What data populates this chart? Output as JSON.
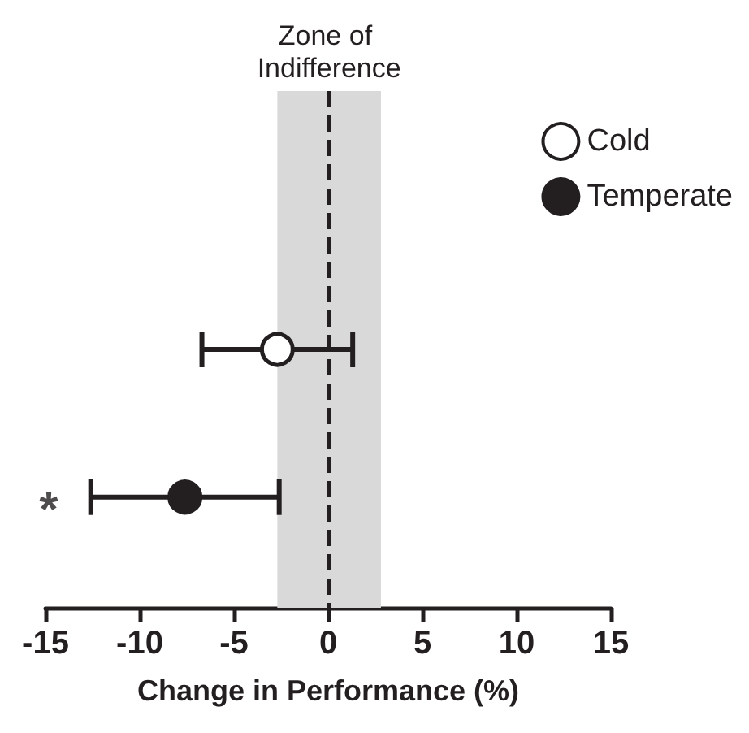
{
  "chart_data": {
    "type": "scatter",
    "orientation": "horizontal",
    "xlabel": "Change in Performance (%)",
    "categories": [
      null,
      null,
      null,
      null,
      null,
      null,
      null
    ],
    "series": [
      {
        "name": "Cold",
        "color": "#ffffff",
        "values": [
          null,
          null,
          null,
          -2.7,
          null,
          null,
          null
        ],
        "errors": [
          null,
          null,
          null,
          [
            -6.7,
            1.3
          ],
          null,
          null,
          null
        ]
      },
      {
        "name": "Temperate",
        "color": "#231f20",
        "values": [
          null,
          null,
          null,
          null,
          null,
          -7.6,
          null
        ],
        "errors": [
          null,
          null,
          null,
          null,
          null,
          [
            -12.6,
            -2.6
          ],
          null
        ]
      }
    ],
    "xlim": [
      -15,
      15
    ],
    "xticks": [
      -15,
      -10,
      -5,
      0,
      5,
      10,
      15
    ],
    "bands": [
      {
        "axis": "x",
        "from": -2.7,
        "to": 2.8,
        "label": "Zone of Indifference",
        "color": "#d9d9d9"
      }
    ],
    "ref_lines": [
      {
        "axis": "x",
        "value": 0,
        "line_style": "dashed",
        "label": null
      }
    ],
    "annotations": [
      "*"
    ],
    "marker": "circle",
    "legend": "top right",
    "tick_labels": "x",
    "grid": false
  }
}
